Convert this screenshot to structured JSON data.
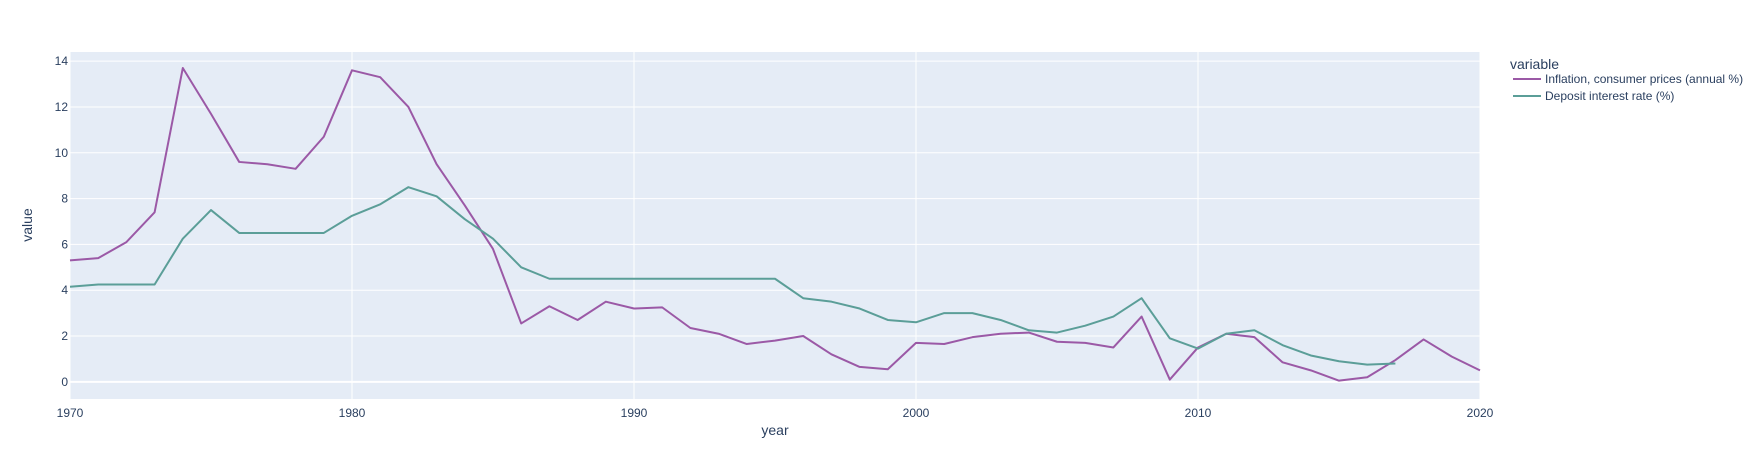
{
  "chart_data": {
    "type": "line",
    "xlabel": "year",
    "ylabel": "value",
    "xlim": [
      1970,
      2020
    ],
    "ylim": [
      -0.75,
      14.4
    ],
    "x_ticks": [
      1970,
      1980,
      1990,
      2000,
      2010,
      2020
    ],
    "y_ticks": [
      0,
      2,
      4,
      6,
      8,
      10,
      12,
      14
    ],
    "grid": true,
    "plot_background": "#E5ECF6",
    "legend": {
      "title": "variable",
      "placement": "right",
      "entries": [
        "Inflation, consumer prices (annual %)",
        "Deposit interest rate (%)"
      ]
    },
    "series": [
      {
        "name": "Inflation, consumer prices (annual %)",
        "color": "#9B59A6",
        "x": [
          1970,
          1971,
          1972,
          1973,
          1974,
          1975,
          1976,
          1977,
          1978,
          1979,
          1980,
          1981,
          1982,
          1983,
          1984,
          1985,
          1986,
          1987,
          1988,
          1989,
          1990,
          1991,
          1992,
          1993,
          1994,
          1995,
          1996,
          1997,
          1998,
          1999,
          2000,
          2001,
          2002,
          2003,
          2004,
          2005,
          2006,
          2007,
          2008,
          2009,
          2010,
          2011,
          2012,
          2013,
          2014,
          2015,
          2016,
          2017,
          2018,
          2019,
          2020
        ],
        "values": [
          5.3,
          5.4,
          6.1,
          7.4,
          13.7,
          11.7,
          9.6,
          9.5,
          9.3,
          10.7,
          13.6,
          13.3,
          12.0,
          9.5,
          7.7,
          5.8,
          2.55,
          3.3,
          2.7,
          3.5,
          3.2,
          3.25,
          2.35,
          2.1,
          1.65,
          1.8,
          2.0,
          1.2,
          0.65,
          0.55,
          1.7,
          1.65,
          1.95,
          2.1,
          2.15,
          1.75,
          1.7,
          1.5,
          2.85,
          0.1,
          1.5,
          2.1,
          1.95,
          0.85,
          0.5,
          0.05,
          0.2,
          0.95,
          1.85,
          1.1,
          0.5
        ]
      },
      {
        "name": "Deposit interest rate (%)",
        "color": "#5B9E98",
        "x": [
          1970,
          1971,
          1972,
          1973,
          1974,
          1975,
          1976,
          1977,
          1978,
          1979,
          1980,
          1981,
          1982,
          1983,
          1984,
          1985,
          1986,
          1987,
          1988,
          1989,
          1990,
          1991,
          1992,
          1993,
          1994,
          1995,
          1996,
          1997,
          1998,
          1999,
          2000,
          2001,
          2002,
          2003,
          2004,
          2005,
          2006,
          2007,
          2008,
          2009,
          2010,
          2011,
          2012,
          2013,
          2014,
          2015,
          2016,
          2017
        ],
        "values": [
          4.15,
          4.25,
          4.25,
          4.25,
          6.25,
          7.5,
          6.5,
          6.5,
          6.5,
          6.5,
          7.25,
          7.75,
          8.5,
          8.1,
          7.1,
          6.25,
          5.0,
          4.5,
          4.5,
          4.5,
          4.5,
          4.5,
          4.5,
          4.5,
          4.5,
          4.5,
          3.65,
          3.5,
          3.2,
          2.7,
          2.6,
          3.0,
          3.0,
          2.7,
          2.25,
          2.15,
          2.45,
          2.85,
          3.65,
          1.9,
          1.45,
          2.1,
          2.25,
          1.6,
          1.15,
          0.9,
          0.75,
          0.8
        ]
      }
    ]
  }
}
